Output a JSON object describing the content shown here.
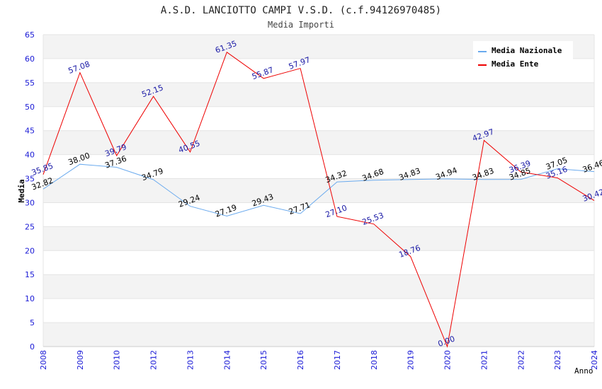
{
  "chart_data": {
    "type": "line",
    "title": "A.S.D. LANCIOTTO CAMPI V.S.D. (c.f.94126970485)",
    "subtitle": "Media Importi",
    "xlabel": "Anno",
    "ylabel": "Media",
    "ylim": [
      0,
      65
    ],
    "yticks": [
      0,
      5,
      10,
      15,
      20,
      25,
      30,
      35,
      40,
      45,
      50,
      55,
      60,
      65
    ],
    "categories": [
      "2008",
      "2009",
      "2010",
      "2012",
      "2013",
      "2014",
      "2015",
      "2016",
      "2017",
      "2018",
      "2019",
      "2020",
      "2021",
      "2022",
      "2023",
      "2024"
    ],
    "grid": true,
    "legend_position": "top-right",
    "series": [
      {
        "name": "Media Nazionale",
        "color": "#6aaaee",
        "label_color": "#000000",
        "values": [
          32.82,
          38.0,
          37.36,
          34.79,
          29.24,
          27.19,
          29.43,
          27.71,
          34.32,
          34.68,
          34.83,
          34.94,
          34.83,
          34.85,
          37.05,
          36.46
        ],
        "labels": [
          "32.82",
          "38.00",
          "37.36",
          "34.79",
          "29.24",
          "27.19",
          "29.43",
          "27.71",
          "34.32",
          "34.68",
          "34.83",
          "34.94",
          "34.83",
          "34.85",
          "37.05",
          "36.46"
        ]
      },
      {
        "name": "Media Ente",
        "color": "#ee0000",
        "label_color": "#1a1aa6",
        "values": [
          35.85,
          57.08,
          39.79,
          52.15,
          40.55,
          61.35,
          55.87,
          57.97,
          27.1,
          25.53,
          18.76,
          0.0,
          42.97,
          36.39,
          35.16,
          30.42
        ],
        "labels": [
          "35.85",
          "57.08",
          "39.79",
          "52.15",
          "40.55",
          "61.35",
          "55.87",
          "57.97",
          "27.10",
          "25.53",
          "18.76",
          "0.00",
          "42.97",
          "36.39",
          "35.16",
          "30.42"
        ]
      }
    ]
  }
}
